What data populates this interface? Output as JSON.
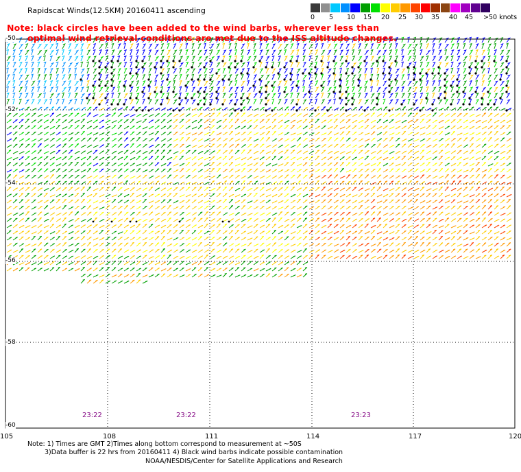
{
  "title": "Rapidscat Winds(12.5KM) 20160411 ascending",
  "note_line1": "Note: black circles have been added to the wind barbs, wherever less than",
  "note_line2": "optimal wind retrieval conditions are met due to the ISS altitude changes.",
  "colorbar": {
    "labels": [
      "0",
      "5",
      "10",
      "15",
      "20",
      "25",
      "30",
      "35",
      "40",
      "45",
      ">50 knots"
    ],
    "colors": [
      "#3a3a3a",
      "#909090",
      "#00c8ff",
      "#0090ff",
      "#0000ff",
      "#00a000",
      "#00e000",
      "#ffff00",
      "#ffcc00",
      "#ff9900",
      "#ff4400",
      "#ff0000",
      "#a03000",
      "#8b4513",
      "#ff00ff",
      "#a000c0",
      "#600090",
      "#300060"
    ]
  },
  "x_axis_labels": [
    "105",
    "108",
    "111",
    "114",
    "117",
    "120"
  ],
  "y_axis_labels": [
    "-50",
    "-52",
    "-54",
    "-56",
    "-58",
    "-60"
  ],
  "time_labels": [
    "23:22",
    "23:22",
    "23:23"
  ],
  "footnote_line1": "Note: 1) Times are GMT 2)Times along bottom correspond to measurement at ~50S",
  "footnote_line2": "3)Data buffer is 22 hrs from 20160411 4) Black wind barbs indicate possible contamination",
  "credit": "NOAA/NESDIS/Center for Satellite Applications and Research",
  "map": {
    "lon_range": [
      105,
      120
    ],
    "lat_range": [
      -60,
      -50
    ],
    "grid": "dotted",
    "legend_position": "top-right"
  }
}
